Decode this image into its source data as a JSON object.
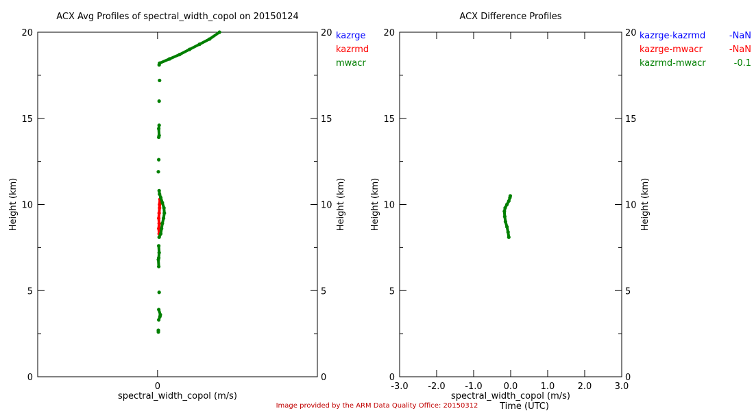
{
  "chart_data": [
    {
      "type": "scatter",
      "title": "ACX Avg Profiles of spectral_width_copol on 20150124",
      "xlabel": "spectral_width_copol (m/s)",
      "ylabel": "Height (km)",
      "ylabel_right": "Height (km)",
      "xlim": [
        -3,
        4
      ],
      "ylim": [
        0,
        20
      ],
      "xticks": [
        0
      ],
      "yticks": [
        0,
        5,
        10,
        15,
        20
      ],
      "legend": "top-right",
      "series": [
        {
          "name": "kazrge",
          "color": "#0000ff",
          "points": []
        },
        {
          "name": "kazrmd",
          "color": "#ff0000",
          "points": [
            [
              0.04,
              8.3
            ],
            [
              0.03,
              8.6
            ],
            [
              0.04,
              8.9
            ],
            [
              0.03,
              9.2
            ],
            [
              0.04,
              9.5
            ],
            [
              0.05,
              9.8
            ],
            [
              0.05,
              10.0
            ],
            [
              0.06,
              10.3
            ]
          ]
        },
        {
          "name": "mwacr",
          "color": "#007f00",
          "points": [
            [
              0.02,
              2.6
            ],
            [
              0.02,
              2.7
            ],
            [
              0.03,
              3.3
            ],
            [
              0.06,
              3.5
            ],
            [
              0.07,
              3.6
            ],
            [
              0.03,
              3.9
            ],
            [
              0.04,
              4.9
            ],
            [
              0.03,
              6.4
            ],
            [
              0.02,
              6.8
            ],
            [
              0.03,
              6.9
            ],
            [
              0.04,
              7.2
            ],
            [
              0.03,
              7.6
            ],
            [
              0.04,
              8.1
            ],
            [
              0.08,
              8.3
            ],
            [
              0.1,
              8.6
            ],
            [
              0.12,
              8.9
            ],
            [
              0.15,
              9.2
            ],
            [
              0.17,
              9.5
            ],
            [
              0.16,
              9.8
            ],
            [
              0.12,
              10.1
            ],
            [
              0.08,
              10.4
            ],
            [
              0.05,
              10.6
            ],
            [
              0.04,
              10.8
            ],
            [
              0.02,
              11.9
            ],
            [
              0.03,
              12.6
            ],
            [
              0.03,
              13.9
            ],
            [
              0.04,
              14.0
            ],
            [
              0.03,
              14.4
            ],
            [
              0.04,
              14.6
            ],
            [
              0.04,
              16.0
            ],
            [
              0.05,
              17.2
            ],
            [
              0.04,
              18.1
            ],
            [
              0.05,
              18.2
            ],
            [
              0.3,
              18.45
            ],
            [
              0.55,
              18.7
            ],
            [
              0.8,
              19.0
            ],
            [
              1.05,
              19.3
            ],
            [
              1.3,
              19.6
            ],
            [
              1.55,
              20.0
            ]
          ]
        }
      ]
    },
    {
      "type": "scatter",
      "title": "ACX Difference Profiles",
      "xlabel": "spectral_width_copol (m/s)",
      "xlabel_overlap": "Time (UTC)",
      "ylabel": "Height (km)",
      "ylabel_right": "Height (km)",
      "xlim": [
        -3,
        3
      ],
      "ylim": [
        0,
        20
      ],
      "xticks": [
        "-3.0",
        "-2.0",
        "-1.0",
        "0.0",
        "1.0",
        "2.0",
        "3.0"
      ],
      "yticks": [
        0,
        5,
        10,
        15,
        20
      ],
      "legend": "top-right",
      "series": [
        {
          "name": "kazrge-kazrmd",
          "value": "-NaN",
          "color": "#0000ff",
          "points": []
        },
        {
          "name": "kazrge-mwacr",
          "value": "-NaN",
          "color": "#ff0000",
          "points": []
        },
        {
          "name": "kazrmd-mwacr",
          "value": "-0.1",
          "color": "#007f00",
          "points": [
            [
              -0.05,
              8.1
            ],
            [
              -0.07,
              8.4
            ],
            [
              -0.1,
              8.7
            ],
            [
              -0.14,
              9.0
            ],
            [
              -0.16,
              9.3
            ],
            [
              -0.17,
              9.6
            ],
            [
              -0.15,
              9.8
            ],
            [
              -0.1,
              10.0
            ],
            [
              -0.05,
              10.2
            ],
            [
              -0.02,
              10.4
            ],
            [
              -0.01,
              10.5
            ]
          ]
        }
      ]
    }
  ],
  "footer": "Image provided by the ARM Data Quality Office: 20150312"
}
